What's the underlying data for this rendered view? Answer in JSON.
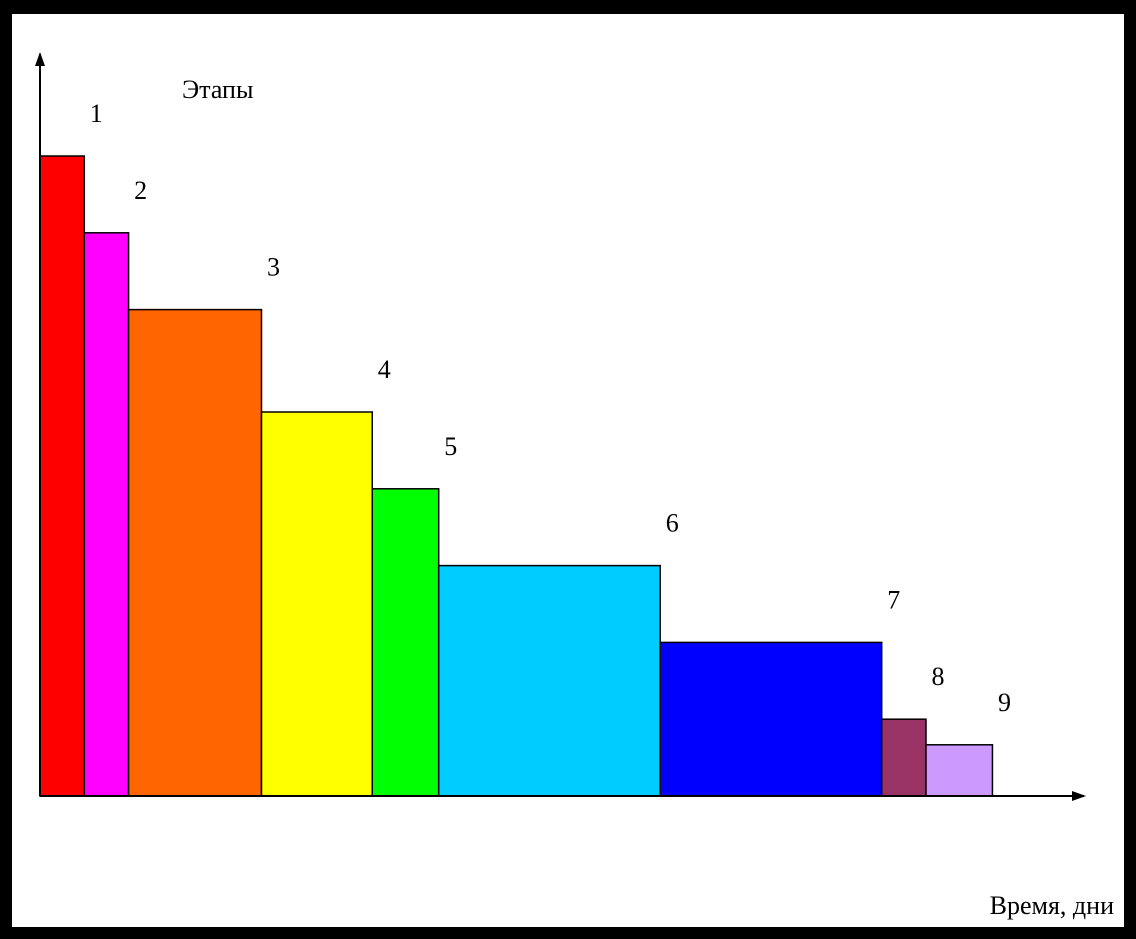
{
  "chart_data": {
    "type": "bar",
    "ylabel": "Этапы",
    "xlabel": "Время, дни",
    "grid": false,
    "legend": "none",
    "stages": [
      {
        "label": "1",
        "color": "#ff0000",
        "start": 0,
        "duration": 2,
        "height": 25
      },
      {
        "label": "2",
        "color": "#ff00ff",
        "start": 2,
        "duration": 2,
        "height": 22
      },
      {
        "label": "3",
        "color": "#ff6600",
        "start": 4,
        "duration": 6,
        "height": 19
      },
      {
        "label": "4",
        "color": "#ffff00",
        "start": 10,
        "duration": 5,
        "height": 15
      },
      {
        "label": "5",
        "color": "#00ff00",
        "start": 15,
        "duration": 3,
        "height": 12
      },
      {
        "label": "6",
        "color": "#00ccff",
        "start": 18,
        "duration": 10,
        "height": 9
      },
      {
        "label": "7",
        "color": "#0000ff",
        "start": 28,
        "duration": 10,
        "height": 6
      },
      {
        "label": "8",
        "color": "#993366",
        "start": 38,
        "duration": 2,
        "height": 3
      },
      {
        "label": "9",
        "color": "#cc99ff",
        "start": 40,
        "duration": 3,
        "height": 2
      }
    ]
  }
}
